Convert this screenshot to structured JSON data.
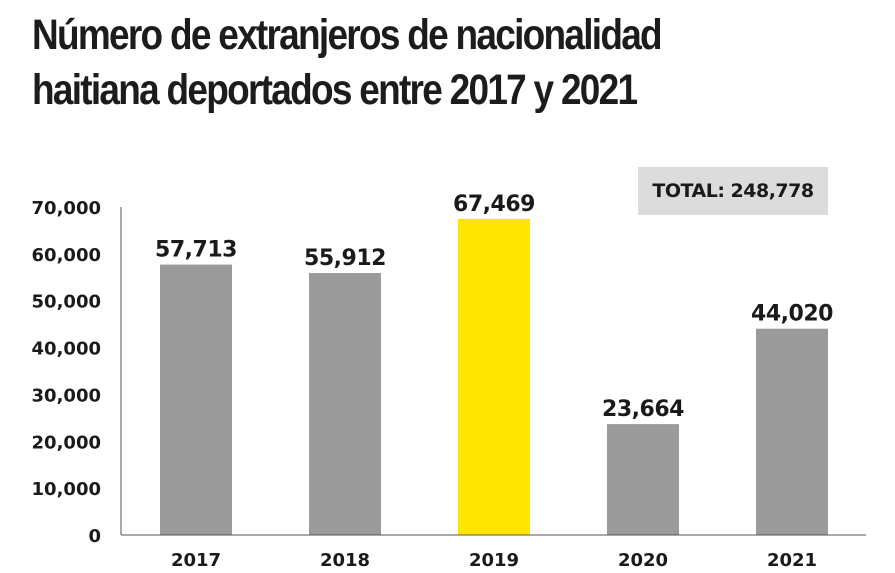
{
  "title_lines": [
    "Número de extranjeros de nacionalidad",
    "haitiana deportados entre 2017 y 2021"
  ],
  "total_label": "TOTAL: 248,778",
  "colors": {
    "bar_default": "#9b9b9b",
    "bar_highlight": "#ffe600",
    "total_box": "#dcdcdc",
    "axis": "#555555",
    "text": "#1a1a1a"
  },
  "chart_data": {
    "type": "bar",
    "title": "Número de extranjeros de nacionalidad haitiana deportados entre 2017 y 2021",
    "xlabel": "",
    "ylabel": "",
    "categories": [
      "2017",
      "2018",
      "2019",
      "2020",
      "2021"
    ],
    "values": [
      57713,
      55912,
      67469,
      23664,
      44020
    ],
    "value_labels": [
      "57,713",
      "55,912",
      "67,469",
      "23,664",
      "44,020"
    ],
    "highlight": [
      "2019"
    ],
    "ylim": [
      0,
      70000
    ],
    "yticks": [
      0,
      10000,
      20000,
      30000,
      40000,
      50000,
      60000,
      70000
    ],
    "ytick_labels": [
      "0",
      "10,000",
      "20,000",
      "30,000",
      "40,000",
      "50,000",
      "60,000",
      "70,000"
    ],
    "grid": false,
    "legend": "none",
    "annotations": [
      "TOTAL: 248,778"
    ]
  }
}
